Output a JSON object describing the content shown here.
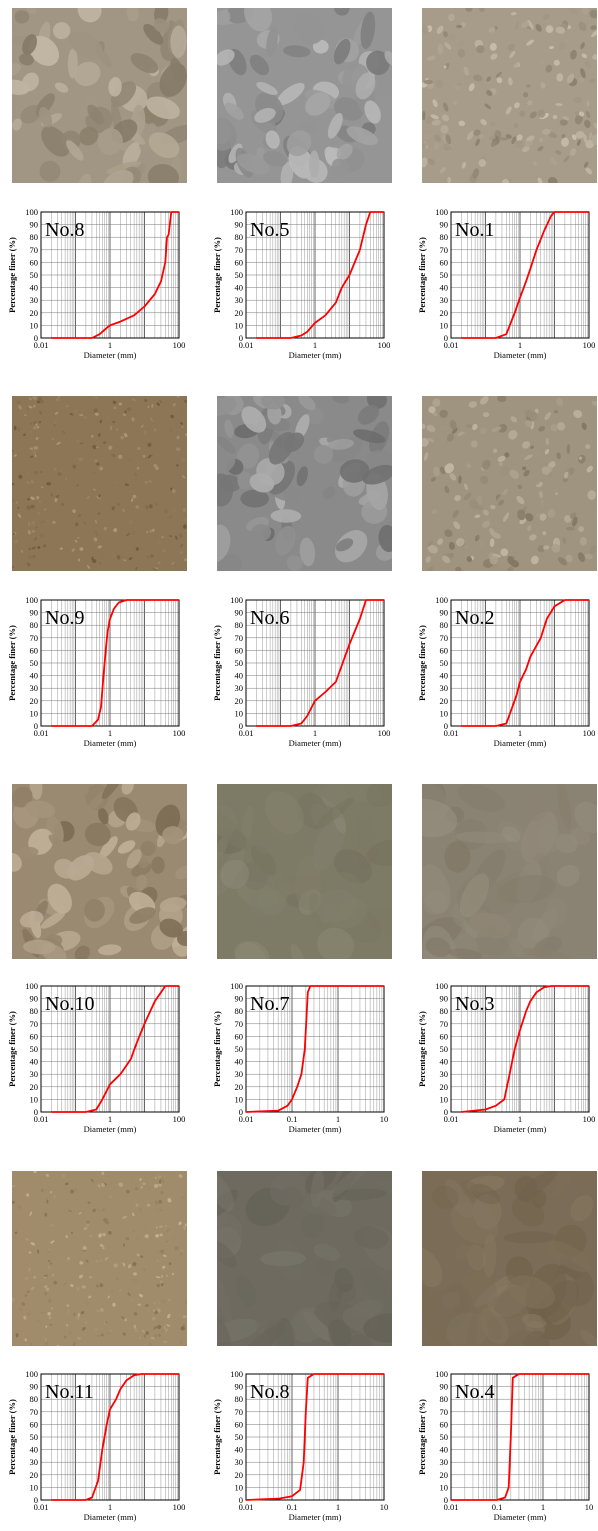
{
  "panels": [
    {
      "label": "No.8",
      "photo_base": "#a09683",
      "photo_style": "gravel",
      "chart_data": {
        "type": "line",
        "title": "No.8",
        "xlabel": "Diameter (mm)",
        "ylabel": "Percentage finer (%)",
        "x_scale": "log",
        "xlim": [
          0.01,
          100
        ],
        "ylim": [
          0,
          100
        ],
        "x_tick_labels": [
          "0.01",
          "1",
          "100"
        ],
        "y_tick_labels": [
          "0",
          "10",
          "20",
          "30",
          "40",
          "50",
          "60",
          "70",
          "80",
          "90",
          "100"
        ],
        "grid": true,
        "line_color": "#ff0000",
        "series": [
          {
            "x": [
              0.02,
              0.3,
              0.5,
              0.8,
              1,
              2,
              5,
              10,
              20,
              30,
              40,
              45,
              50,
              60,
              70,
              100
            ],
            "y": [
              0,
              0,
              3,
              8,
              10,
              13,
              18,
              25,
              35,
              45,
              60,
              80,
              82,
              100,
              100,
              100
            ]
          }
        ]
      }
    },
    {
      "label": "No.5",
      "photo_base": "#959595",
      "photo_style": "gravel",
      "chart_data": {
        "type": "line",
        "title": "No.5",
        "xlabel": "Diameter (mm)",
        "ylabel": "Percentage finer (%)",
        "x_scale": "log",
        "xlim": [
          0.01,
          100
        ],
        "ylim": [
          0,
          100
        ],
        "x_tick_labels": [
          "0.01",
          "1",
          "100"
        ],
        "y_tick_labels": [
          "0",
          "10",
          "20",
          "30",
          "40",
          "50",
          "60",
          "70",
          "80",
          "90",
          "100"
        ],
        "grid": true,
        "line_color": "#ff0000",
        "series": [
          {
            "x": [
              0.02,
              0.2,
              0.4,
              0.6,
              1,
              2,
              4,
              6,
              10,
              20,
              30,
              40,
              50,
              100
            ],
            "y": [
              0,
              0,
              2,
              5,
              12,
              18,
              28,
              40,
              50,
              70,
              90,
              100,
              100,
              100
            ]
          }
        ]
      }
    },
    {
      "label": "No.1",
      "photo_base": "#a69c89",
      "photo_style": "fine",
      "chart_data": {
        "type": "line",
        "title": "No.1",
        "xlabel": "Diameter (mm)",
        "ylabel": "Percentage finer (%)",
        "x_scale": "log",
        "xlim": [
          0.01,
          100
        ],
        "ylim": [
          0,
          100
        ],
        "x_tick_labels": [
          "0.01",
          "1",
          "100"
        ],
        "y_tick_labels": [
          "0",
          "10",
          "20",
          "30",
          "40",
          "50",
          "60",
          "70",
          "80",
          "90",
          "100"
        ],
        "grid": true,
        "line_color": "#ff0000",
        "series": [
          {
            "x": [
              0.02,
              0.2,
              0.4,
              0.7,
              1,
              1.5,
              2,
              3,
              5,
              8,
              10,
              15,
              20,
              100
            ],
            "y": [
              0,
              0,
              3,
              20,
              32,
              45,
              55,
              70,
              85,
              97,
              100,
              100,
              100,
              100
            ]
          }
        ]
      }
    },
    {
      "label": "No.9",
      "photo_base": "#8c7656",
      "photo_style": "sand",
      "chart_data": {
        "type": "line",
        "title": "No.9",
        "xlabel": "Diameter (mm)",
        "ylabel": "Percentage finer (%)",
        "x_scale": "log",
        "xlim": [
          0.01,
          100
        ],
        "ylim": [
          0,
          100
        ],
        "x_tick_labels": [
          "0.01",
          "1",
          "100"
        ],
        "y_tick_labels": [
          "0",
          "10",
          "20",
          "30",
          "40",
          "50",
          "60",
          "70",
          "80",
          "90",
          "100"
        ],
        "grid": true,
        "line_color": "#ff0000",
        "series": [
          {
            "x": [
              0.02,
              0.3,
              0.45,
              0.55,
              0.65,
              0.75,
              0.85,
              1,
              1.3,
              1.8,
              3,
              5,
              100
            ],
            "y": [
              0,
              0,
              5,
              15,
              40,
              60,
              75,
              85,
              93,
              98,
              100,
              100,
              100
            ]
          }
        ]
      }
    },
    {
      "label": "No.6",
      "photo_base": "#8a8a8a",
      "photo_style": "gravel",
      "chart_data": {
        "type": "line",
        "title": "No.6",
        "xlabel": "Diameter (mm)",
        "ylabel": "Percentage finer (%)",
        "x_scale": "log",
        "xlim": [
          0.01,
          100
        ],
        "ylim": [
          0,
          100
        ],
        "x_tick_labels": [
          "0.01",
          "1",
          "100"
        ],
        "y_tick_labels": [
          "0",
          "10",
          "20",
          "30",
          "40",
          "50",
          "60",
          "70",
          "80",
          "90",
          "100"
        ],
        "grid": true,
        "line_color": "#ff0000",
        "series": [
          {
            "x": [
              0.02,
              0.2,
              0.4,
              0.6,
              0.8,
              1,
              2,
              4,
              6,
              10,
              20,
              30,
              40,
              50,
              100
            ],
            "y": [
              0,
              0,
              2,
              8,
              15,
              20,
              27,
              35,
              48,
              65,
              85,
              100,
              100,
              100,
              100
            ]
          }
        ]
      }
    },
    {
      "label": "No.2",
      "photo_base": "#9f9480",
      "photo_style": "fine",
      "chart_data": {
        "type": "line",
        "title": "No.2",
        "xlabel": "Diameter (mm)",
        "ylabel": "Percentage finer (%)",
        "x_scale": "log",
        "xlim": [
          0.01,
          100
        ],
        "ylim": [
          0,
          100
        ],
        "x_tick_labels": [
          "0.01",
          "1",
          "100"
        ],
        "y_tick_labels": [
          "0",
          "10",
          "20",
          "30",
          "40",
          "50",
          "60",
          "70",
          "80",
          "90",
          "100"
        ],
        "grid": true,
        "line_color": "#ff0000",
        "series": [
          {
            "x": [
              0.02,
              0.2,
              0.4,
              0.6,
              0.8,
              1,
              1.5,
              2,
              4,
              6,
              10,
              20,
              30,
              100
            ],
            "y": [
              0,
              0,
              2,
              15,
              25,
              35,
              45,
              55,
              70,
              85,
              95,
              100,
              100,
              100
            ]
          }
        ]
      }
    },
    {
      "label": "No.10",
      "photo_base": "#9a8a72",
      "photo_style": "gravel",
      "chart_data": {
        "type": "line",
        "title": "No.10",
        "xlabel": "Diameter (mm)",
        "ylabel": "Percentage finer (%)",
        "x_scale": "log",
        "xlim": [
          0.01,
          100
        ],
        "ylim": [
          0,
          100
        ],
        "x_tick_labels": [
          "0.01",
          "1",
          "100"
        ],
        "y_tick_labels": [
          "0",
          "10",
          "20",
          "30",
          "40",
          "50",
          "60",
          "70",
          "80",
          "90",
          "100"
        ],
        "grid": true,
        "line_color": "#ff0000",
        "series": [
          {
            "x": [
              0.02,
              0.2,
              0.4,
              0.6,
              1,
              2,
              4,
              6,
              10,
              20,
              30,
              40,
              50,
              100
            ],
            "y": [
              0,
              0,
              2,
              10,
              22,
              30,
              42,
              55,
              70,
              88,
              95,
              100,
              100,
              100
            ]
          }
        ]
      }
    },
    {
      "label": "No.7",
      "photo_base": "#7d7a66",
      "photo_style": "silt",
      "chart_data": {
        "type": "line",
        "title": "No.7",
        "xlabel": "Diameter (mm)",
        "ylabel": "Percentage finer (%)",
        "x_scale": "log",
        "xlim": [
          0.01,
          10
        ],
        "ylim": [
          0,
          100
        ],
        "x_tick_labels": [
          "0.01",
          "0.1",
          "1",
          "10"
        ],
        "y_tick_labels": [
          "0",
          "10",
          "20",
          "30",
          "40",
          "50",
          "60",
          "70",
          "80",
          "90",
          "100"
        ],
        "grid": true,
        "line_color": "#ff0000",
        "series": [
          {
            "x": [
              0.01,
              0.05,
              0.08,
              0.1,
              0.13,
              0.16,
              0.19,
              0.22,
              0.25,
              0.3,
              0.5,
              1,
              10
            ],
            "y": [
              0,
              1,
              5,
              10,
              20,
              30,
              50,
              95,
              100,
              100,
              100,
              100,
              100
            ]
          }
        ]
      }
    },
    {
      "label": "No.3",
      "photo_base": "#8a8272",
      "photo_style": "silt",
      "chart_data": {
        "type": "line",
        "title": "No.3",
        "xlabel": "Diameter (mm)",
        "ylabel": "Percentage finer (%)",
        "x_scale": "log",
        "xlim": [
          0.01,
          100
        ],
        "ylim": [
          0,
          100
        ],
        "x_tick_labels": [
          "0.01",
          "1",
          "100"
        ],
        "y_tick_labels": [
          "0",
          "10",
          "20",
          "30",
          "40",
          "50",
          "60",
          "70",
          "80",
          "90",
          "100"
        ],
        "grid": true,
        "line_color": "#ff0000",
        "series": [
          {
            "x": [
              0.02,
              0.1,
              0.2,
              0.35,
              0.5,
              0.7,
              1,
              1.5,
              2,
              3,
              5,
              8,
              100
            ],
            "y": [
              0,
              2,
              5,
              10,
              30,
              50,
              65,
              80,
              88,
              95,
              99,
              100,
              100
            ]
          }
        ]
      }
    },
    {
      "label": "No.11",
      "photo_base": "#a08b6b",
      "photo_style": "sand",
      "chart_data": {
        "type": "line",
        "title": "No.11",
        "xlabel": "Diameter (mm)",
        "ylabel": "Percentage finer (%)",
        "x_scale": "log",
        "xlim": [
          0.01,
          100
        ],
        "ylim": [
          0,
          100
        ],
        "x_tick_labels": [
          "0.01",
          "1",
          "100"
        ],
        "y_tick_labels": [
          "0",
          "10",
          "20",
          "30",
          "40",
          "50",
          "60",
          "70",
          "80",
          "90",
          "100"
        ],
        "grid": true,
        "line_color": "#ff0000",
        "series": [
          {
            "x": [
              0.02,
              0.2,
              0.3,
              0.45,
              0.6,
              0.8,
              1,
              1.5,
              2,
              3,
              5,
              8,
              10,
              100
            ],
            "y": [
              0,
              0,
              2,
              15,
              40,
              60,
              72,
              80,
              88,
              95,
              99,
              100,
              100,
              100
            ]
          }
        ]
      }
    },
    {
      "label": "No.8",
      "photo_base": "#6e6a60",
      "photo_style": "silt",
      "chart_data": {
        "type": "line",
        "title": "No.8",
        "xlabel": "Diameter (mm)",
        "ylabel": "Percentage finer (%)",
        "x_scale": "log",
        "xlim": [
          0.01,
          10
        ],
        "ylim": [
          0,
          100
        ],
        "x_tick_labels": [
          "0.01",
          "0.1",
          "1",
          "10"
        ],
        "y_tick_labels": [
          "0",
          "10",
          "20",
          "30",
          "40",
          "50",
          "60",
          "70",
          "80",
          "90",
          "100"
        ],
        "grid": true,
        "line_color": "#ff0000",
        "series": [
          {
            "x": [
              0.01,
              0.05,
              0.1,
              0.15,
              0.18,
              0.2,
              0.22,
              0.3,
              1,
              10
            ],
            "y": [
              0,
              1,
              3,
              8,
              30,
              70,
              97,
              100,
              100,
              100
            ]
          }
        ]
      }
    },
    {
      "label": "No.4",
      "photo_base": "#7a6c56",
      "photo_style": "silt",
      "chart_data": {
        "type": "line",
        "title": "No.4",
        "xlabel": "Diameter (mm)",
        "ylabel": "Percentage finer (%)",
        "x_scale": "log",
        "xlim": [
          0.01,
          10
        ],
        "ylim": [
          0,
          100
        ],
        "x_tick_labels": [
          "0.01",
          "0.1",
          "1",
          "10"
        ],
        "y_tick_labels": [
          "0",
          "10",
          "20",
          "30",
          "40",
          "50",
          "60",
          "70",
          "80",
          "90",
          "100"
        ],
        "grid": true,
        "line_color": "#ff0000",
        "series": [
          {
            "x": [
              0.01,
              0.05,
              0.1,
              0.15,
              0.18,
              0.2,
              0.22,
              0.3,
              1,
              10
            ],
            "y": [
              0,
              0,
              0,
              2,
              10,
              50,
              97,
              100,
              100,
              100
            ]
          }
        ]
      }
    }
  ]
}
